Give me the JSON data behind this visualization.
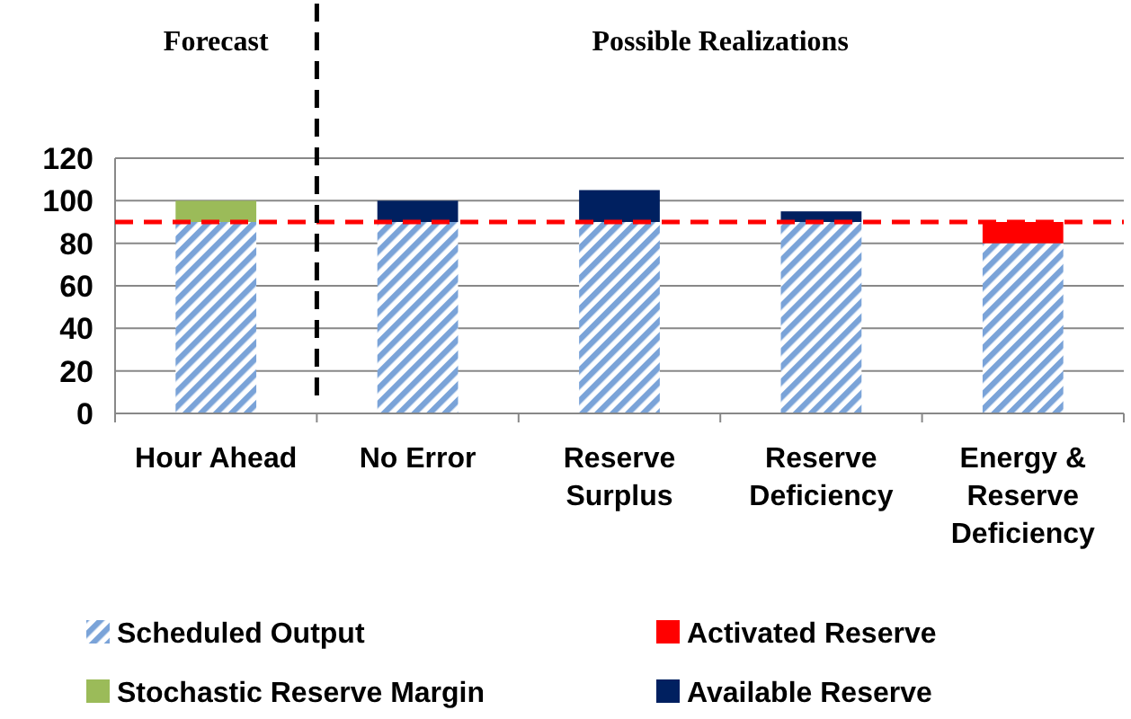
{
  "chart_data": {
    "type": "bar",
    "stacked": true,
    "categories": [
      "Hour Ahead",
      "No Error",
      "Reserve Surplus",
      "Reserve Deficiency",
      "Energy & Reserve Deficiency"
    ],
    "series": [
      {
        "name": "Scheduled Output",
        "color": "#7aa3d8",
        "values": [
          90,
          90,
          90,
          90,
          80
        ]
      },
      {
        "name": "Stochastic Reserve Margin",
        "color": "#9bbb59",
        "values": [
          10,
          null,
          null,
          null,
          null
        ]
      },
      {
        "name": "Activated Reserve",
        "color": "#ff0000",
        "values": [
          null,
          null,
          null,
          null,
          10
        ]
      },
      {
        "name": "Available Reserve",
        "color": "#002060",
        "values": [
          null,
          10,
          15,
          5,
          null
        ]
      }
    ],
    "ylim": [
      0,
      120
    ],
    "yticks": [
      0,
      20,
      40,
      60,
      80,
      100,
      120
    ],
    "grid": "y",
    "legend": "bottom",
    "ref_lines": [
      {
        "axis": "y",
        "value": 90,
        "color": "#ff0000",
        "line_style": "dashed"
      }
    ],
    "annotations": [
      "Forecast",
      "Possible Realizations"
    ]
  }
}
